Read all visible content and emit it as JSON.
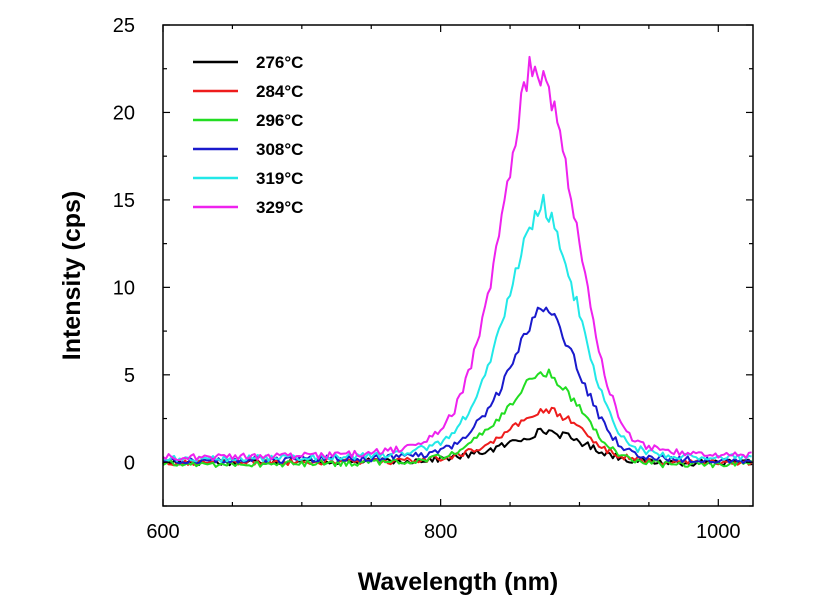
{
  "chart_data": {
    "type": "line",
    "title": "",
    "xlabel": "Wavelength (nm)",
    "ylabel": "Intensity (cps)",
    "xlim": [
      600,
      1025
    ],
    "ylim": [
      -2.5,
      25
    ],
    "x_ticks": [
      600,
      800,
      1000
    ],
    "y_ticks": [
      0,
      5,
      10,
      15,
      20,
      25
    ],
    "x_tick_labels": [
      "600",
      "800",
      "1000"
    ],
    "y_tick_labels": [
      "0",
      "5",
      "10",
      "15",
      "20",
      "25"
    ],
    "grid": false,
    "legend_position": "top-left",
    "series": [
      {
        "name": "276°C",
        "color": "#000000",
        "points": [
          [
            600,
            0
          ],
          [
            640,
            0
          ],
          [
            680,
            0.05
          ],
          [
            720,
            0.05
          ],
          [
            760,
            0.05
          ],
          [
            780,
            0.1
          ],
          [
            800,
            0.2
          ],
          [
            810,
            0.3
          ],
          [
            820,
            0.4
          ],
          [
            830,
            0.6
          ],
          [
            840,
            0.8
          ],
          [
            850,
            1.1
          ],
          [
            860,
            1.4
          ],
          [
            870,
            1.7
          ],
          [
            875,
            1.8
          ],
          [
            880,
            1.75
          ],
          [
            890,
            1.5
          ],
          [
            900,
            1.2
          ],
          [
            910,
            0.8
          ],
          [
            920,
            0.5
          ],
          [
            930,
            0.25
          ],
          [
            940,
            0.1
          ],
          [
            960,
            0
          ],
          [
            1000,
            -0.05
          ],
          [
            1025,
            0
          ]
        ]
      },
      {
        "name": "284°C",
        "color": "#ee1c1c",
        "points": [
          [
            600,
            0
          ],
          [
            640,
            0
          ],
          [
            680,
            0
          ],
          [
            720,
            0.05
          ],
          [
            760,
            0.05
          ],
          [
            780,
            0.1
          ],
          [
            800,
            0.2
          ],
          [
            810,
            0.4
          ],
          [
            820,
            0.6
          ],
          [
            830,
            0.9
          ],
          [
            840,
            1.3
          ],
          [
            850,
            1.8
          ],
          [
            860,
            2.4
          ],
          [
            868,
            2.8
          ],
          [
            875,
            3.0
          ],
          [
            880,
            2.9
          ],
          [
            890,
            2.6
          ],
          [
            900,
            2.0
          ],
          [
            910,
            1.3
          ],
          [
            920,
            0.7
          ],
          [
            930,
            0.35
          ],
          [
            940,
            0.15
          ],
          [
            960,
            0.05
          ],
          [
            1000,
            0
          ],
          [
            1025,
            0
          ]
        ]
      },
      {
        "name": "296°C",
        "color": "#22dd22",
        "points": [
          [
            600,
            -0.1
          ],
          [
            640,
            -0.1
          ],
          [
            680,
            -0.1
          ],
          [
            720,
            -0.05
          ],
          [
            760,
            0
          ],
          [
            780,
            0.05
          ],
          [
            800,
            0.3
          ],
          [
            810,
            0.6
          ],
          [
            820,
            1.0
          ],
          [
            830,
            1.6
          ],
          [
            840,
            2.3
          ],
          [
            850,
            3.3
          ],
          [
            860,
            4.3
          ],
          [
            868,
            4.9
          ],
          [
            875,
            5.2
          ],
          [
            880,
            5.0
          ],
          [
            890,
            4.2
          ],
          [
            900,
            3.1
          ],
          [
            910,
            2.0
          ],
          [
            920,
            1.0
          ],
          [
            930,
            0.4
          ],
          [
            940,
            0.1
          ],
          [
            960,
            -0.1
          ],
          [
            1000,
            -0.1
          ],
          [
            1025,
            0
          ]
        ]
      },
      {
        "name": "308°C",
        "color": "#1a1acc",
        "points": [
          [
            600,
            0.1
          ],
          [
            640,
            0.1
          ],
          [
            680,
            0.15
          ],
          [
            720,
            0.2
          ],
          [
            760,
            0.25
          ],
          [
            780,
            0.35
          ],
          [
            800,
            0.6
          ],
          [
            810,
            1.0
          ],
          [
            820,
            1.6
          ],
          [
            830,
            2.6
          ],
          [
            840,
            3.8
          ],
          [
            850,
            5.4
          ],
          [
            860,
            7.2
          ],
          [
            868,
            8.3
          ],
          [
            874,
            9.0
          ],
          [
            880,
            8.4
          ],
          [
            890,
            7.0
          ],
          [
            900,
            5.2
          ],
          [
            910,
            3.3
          ],
          [
            920,
            1.8
          ],
          [
            930,
            0.9
          ],
          [
            940,
            0.4
          ],
          [
            960,
            0.2
          ],
          [
            1000,
            0.15
          ],
          [
            1025,
            0.1
          ]
        ]
      },
      {
        "name": "319°C",
        "color": "#22e8e8",
        "points": [
          [
            600,
            0.2
          ],
          [
            640,
            0.2
          ],
          [
            680,
            0.25
          ],
          [
            720,
            0.3
          ],
          [
            760,
            0.4
          ],
          [
            780,
            0.6
          ],
          [
            800,
            1.1
          ],
          [
            810,
            1.7
          ],
          [
            820,
            2.9
          ],
          [
            830,
            4.6
          ],
          [
            840,
            6.9
          ],
          [
            850,
            9.6
          ],
          [
            860,
            12.5
          ],
          [
            868,
            14.2
          ],
          [
            874,
            14.8
          ],
          [
            880,
            13.9
          ],
          [
            890,
            11.4
          ],
          [
            900,
            8.5
          ],
          [
            910,
            5.5
          ],
          [
            920,
            3.0
          ],
          [
            930,
            1.5
          ],
          [
            940,
            0.8
          ],
          [
            960,
            0.4
          ],
          [
            1000,
            0.3
          ],
          [
            1025,
            0.3
          ]
        ]
      },
      {
        "name": "329°C",
        "color": "#ee22ee",
        "points": [
          [
            600,
            0.3
          ],
          [
            640,
            0.3
          ],
          [
            680,
            0.35
          ],
          [
            720,
            0.4
          ],
          [
            760,
            0.6
          ],
          [
            780,
            0.9
          ],
          [
            800,
            1.8
          ],
          [
            810,
            3.0
          ],
          [
            820,
            5.0
          ],
          [
            830,
            8.0
          ],
          [
            840,
            12.0
          ],
          [
            850,
            16.5
          ],
          [
            858,
            20.5
          ],
          [
            864,
            22.5
          ],
          [
            870,
            22.0
          ],
          [
            876,
            21.8
          ],
          [
            882,
            20.0
          ],
          [
            890,
            17.0
          ],
          [
            900,
            12.5
          ],
          [
            910,
            8.0
          ],
          [
            920,
            4.5
          ],
          [
            930,
            2.3
          ],
          [
            940,
            1.2
          ],
          [
            960,
            0.6
          ],
          [
            1000,
            0.4
          ],
          [
            1025,
            0.4
          ]
        ]
      }
    ]
  }
}
